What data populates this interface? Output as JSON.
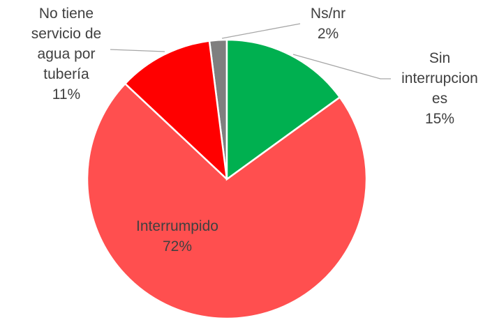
{
  "chart_data": {
    "type": "pie",
    "categories": [
      "Sin interrupciones",
      "Interrumpido",
      "No tiene servicio de agua por tubería",
      "Ns/nr"
    ],
    "values": [
      15,
      72,
      11,
      2
    ],
    "value_labels": [
      "15%",
      "72%",
      "11%",
      "2%"
    ],
    "colors": [
      "#00b050",
      "#ff4f4f",
      "#ff0000",
      "#7f7f7f"
    ]
  }
}
